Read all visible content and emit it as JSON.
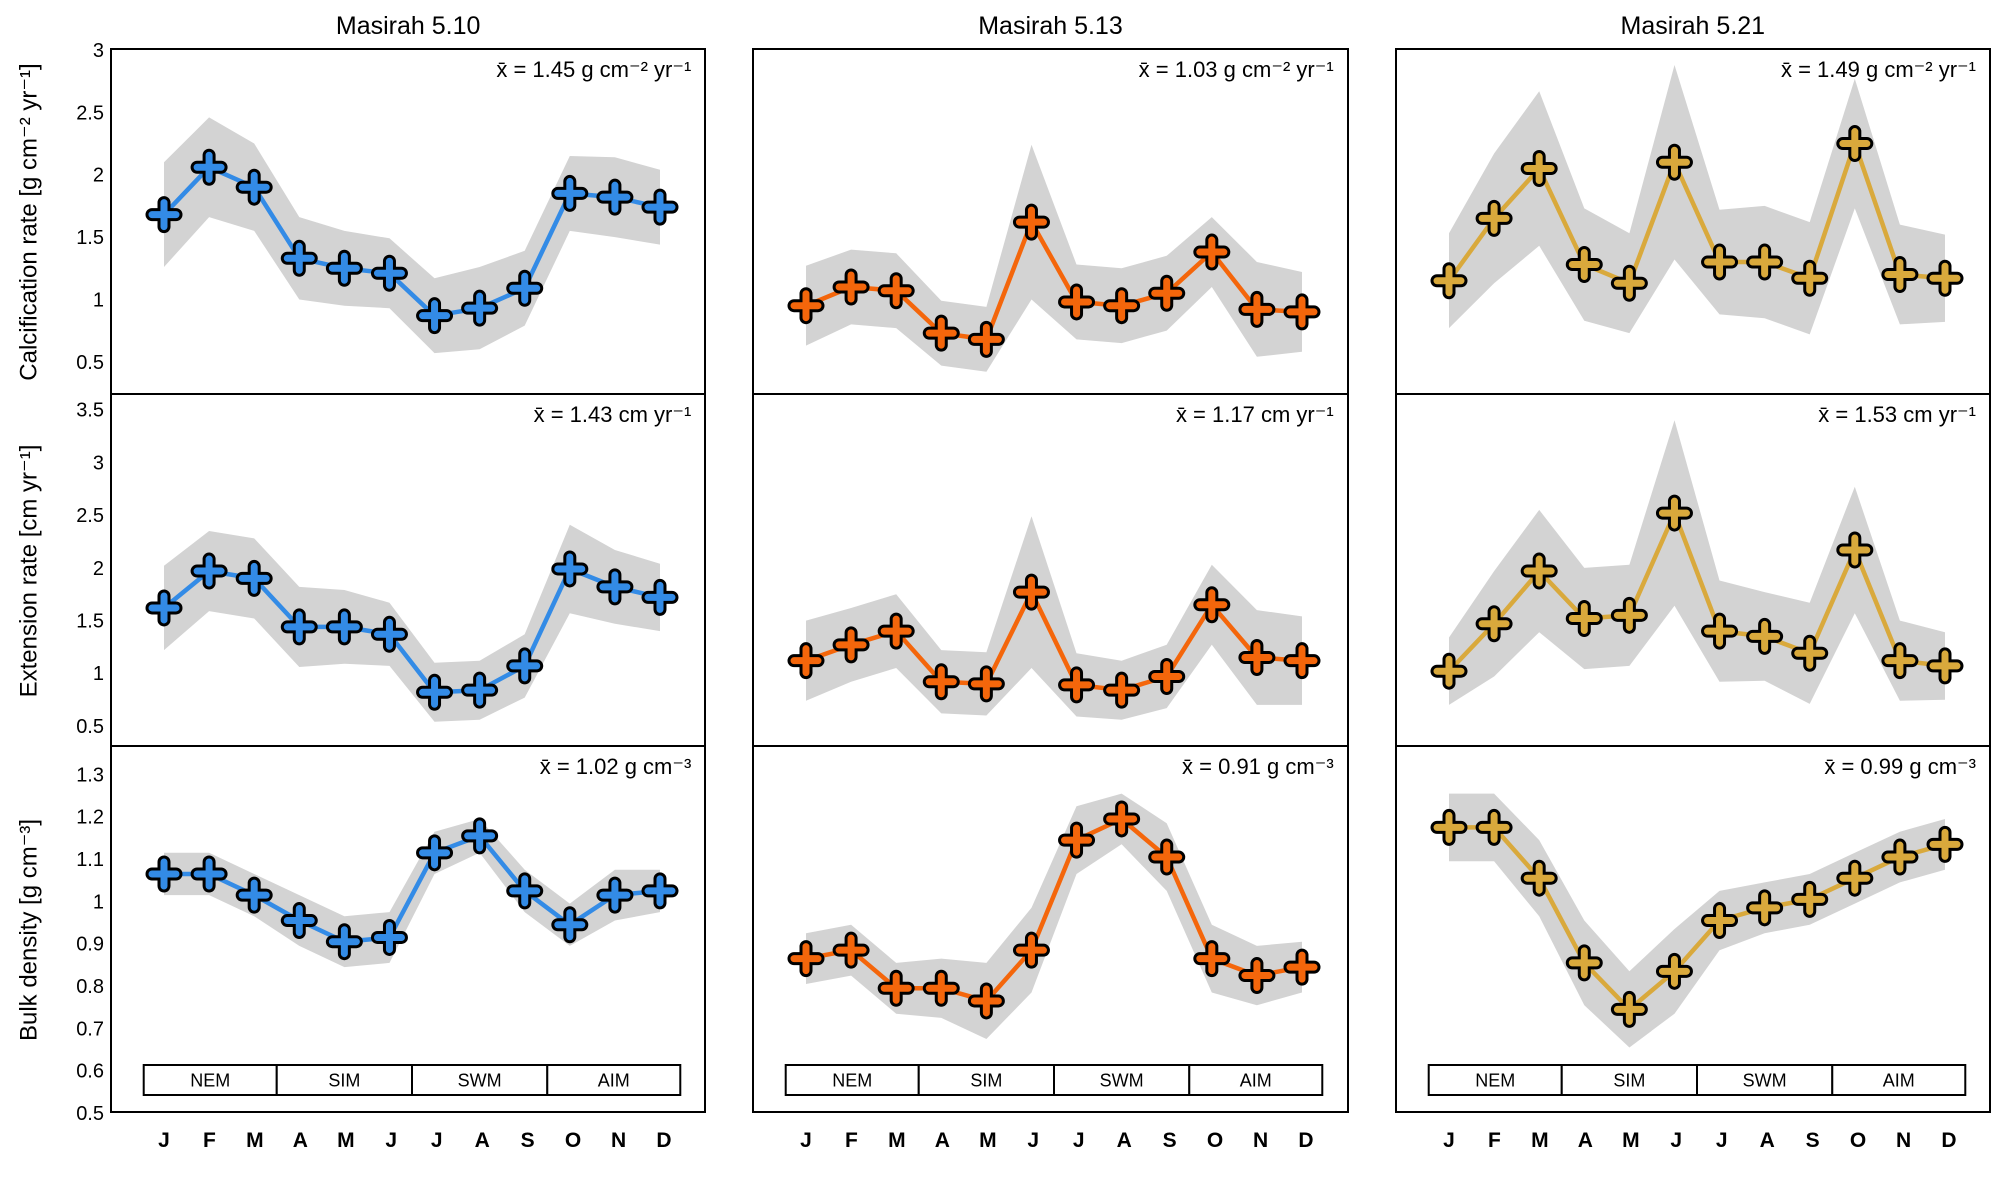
{
  "chart_data": {
    "type": "line",
    "months": [
      "J",
      "F",
      "M",
      "A",
      "M",
      "J",
      "J",
      "A",
      "S",
      "O",
      "N",
      "D"
    ],
    "seasons": [
      "NEM",
      "SIM",
      "SWM",
      "AIM"
    ],
    "band_color": "#d3d3d3",
    "columns": [
      {
        "title": "Masirah 5.10",
        "color": "#338be6"
      },
      {
        "title": "Masirah 5.13",
        "color": "#f4660b"
      },
      {
        "title": "Masirah 5.21",
        "color": "#d9a93c"
      }
    ],
    "rows": [
      {
        "ylabel": "Calcification rate [g cm⁻² yr⁻¹]",
        "ylim": [
          0.25,
          3.0
        ],
        "ytick_labels": [
          "3",
          "2.5",
          "2",
          "1.5",
          "1",
          "0.5"
        ],
        "ytick_values": [
          3,
          2.5,
          2,
          1.5,
          1,
          0.5
        ],
        "show_seasons": false,
        "panels": [
          {
            "mean_label": "x̄ = 1.45 g cm⁻² yr⁻¹",
            "values": [
              1.68,
              2.06,
              1.9,
              1.33,
              1.25,
              1.21,
              0.87,
              0.93,
              1.09,
              1.85,
              1.82,
              1.74
            ],
            "band": [
              0.42,
              0.4,
              0.35,
              0.33,
              0.3,
              0.28,
              0.3,
              0.33,
              0.3,
              0.3,
              0.32,
              0.3
            ]
          },
          {
            "mean_label": "x̄ = 1.03 g cm⁻² yr⁻¹",
            "values": [
              0.95,
              1.1,
              1.07,
              0.73,
              0.68,
              1.62,
              0.98,
              0.95,
              1.05,
              1.38,
              0.92,
              0.9
            ],
            "band": [
              0.32,
              0.3,
              0.3,
              0.26,
              0.26,
              0.62,
              0.3,
              0.3,
              0.3,
              0.28,
              0.38,
              0.32
            ]
          },
          {
            "mean_label": "x̄ = 1.49 g cm⁻² yr⁻¹",
            "values": [
              1.15,
              1.65,
              2.05,
              1.28,
              1.13,
              2.1,
              1.3,
              1.3,
              1.17,
              2.25,
              1.2,
              1.17
            ],
            "band": [
              0.38,
              0.52,
              0.62,
              0.45,
              0.4,
              0.78,
              0.42,
              0.45,
              0.45,
              0.52,
              0.4,
              0.35
            ]
          }
        ]
      },
      {
        "ylabel": "Extension rate [cm yr⁻¹]",
        "ylim": [
          0.3,
          3.62
        ],
        "ytick_labels": [
          "3.5",
          "3",
          "2.5",
          "2",
          "1.5",
          "1",
          "0.5"
        ],
        "ytick_values": [
          3.5,
          3,
          2.5,
          2,
          1.5,
          1,
          0.5
        ],
        "show_seasons": false,
        "panels": [
          {
            "mean_label": "x̄ = 1.43 cm yr⁻¹",
            "values": [
              1.6,
              1.95,
              1.88,
              1.42,
              1.42,
              1.35,
              0.8,
              0.82,
              1.05,
              1.97,
              1.8,
              1.7
            ],
            "band": [
              0.4,
              0.38,
              0.38,
              0.38,
              0.35,
              0.3,
              0.28,
              0.28,
              0.3,
              0.42,
              0.35,
              0.32
            ]
          },
          {
            "mean_label": "x̄ = 1.17 cm yr⁻¹",
            "values": [
              1.1,
              1.25,
              1.38,
              0.9,
              0.88,
              1.75,
              0.87,
              0.82,
              0.95,
              1.63,
              1.13,
              1.1
            ],
            "band": [
              0.38,
              0.35,
              0.35,
              0.3,
              0.3,
              0.72,
              0.3,
              0.28,
              0.3,
              0.38,
              0.45,
              0.42
            ]
          },
          {
            "mean_label": "x̄ = 1.53 cm yr⁻¹",
            "values": [
              1.0,
              1.45,
              1.95,
              1.5,
              1.53,
              2.5,
              1.38,
              1.33,
              1.17,
              2.15,
              1.1,
              1.05
            ],
            "band": [
              0.32,
              0.5,
              0.58,
              0.48,
              0.48,
              0.88,
              0.48,
              0.42,
              0.48,
              0.6,
              0.38,
              0.32
            ]
          }
        ]
      },
      {
        "ylabel": "Bulk density [g cm⁻³]",
        "ylim": [
          0.5,
          1.36
        ],
        "ytick_labels": [
          "1.3",
          "1.2",
          "1.1",
          "1",
          "0.9",
          "0.8",
          "0.7",
          "0.6",
          "0.5"
        ],
        "ytick_values": [
          1.3,
          1.2,
          1.1,
          1.0,
          0.9,
          0.8,
          0.7,
          0.6,
          0.5
        ],
        "show_seasons": true,
        "panels": [
          {
            "mean_label": "x̄ = 1.02 g cm⁻³",
            "values": [
              1.06,
              1.06,
              1.01,
              0.95,
              0.9,
              0.91,
              1.11,
              1.15,
              1.02,
              0.94,
              1.01,
              1.02
            ],
            "band": [
              0.05,
              0.05,
              0.05,
              0.06,
              0.06,
              0.06,
              0.05,
              0.04,
              0.05,
              0.05,
              0.06,
              0.05
            ]
          },
          {
            "mean_label": "x̄ = 0.91 g cm⁻³",
            "values": [
              0.86,
              0.88,
              0.79,
              0.79,
              0.76,
              0.88,
              1.14,
              1.19,
              1.1,
              0.86,
              0.82,
              0.84
            ],
            "band": [
              0.06,
              0.06,
              0.06,
              0.07,
              0.09,
              0.1,
              0.08,
              0.06,
              0.08,
              0.08,
              0.07,
              0.06
            ]
          },
          {
            "mean_label": "x̄ = 0.99 g cm⁻³",
            "values": [
              1.17,
              1.17,
              1.05,
              0.85,
              0.74,
              0.83,
              0.95,
              0.98,
              1.0,
              1.05,
              1.1,
              1.13
            ],
            "band": [
              0.08,
              0.08,
              0.09,
              0.1,
              0.09,
              0.1,
              0.07,
              0.06,
              0.06,
              0.06,
              0.06,
              0.06
            ]
          }
        ]
      }
    ]
  }
}
